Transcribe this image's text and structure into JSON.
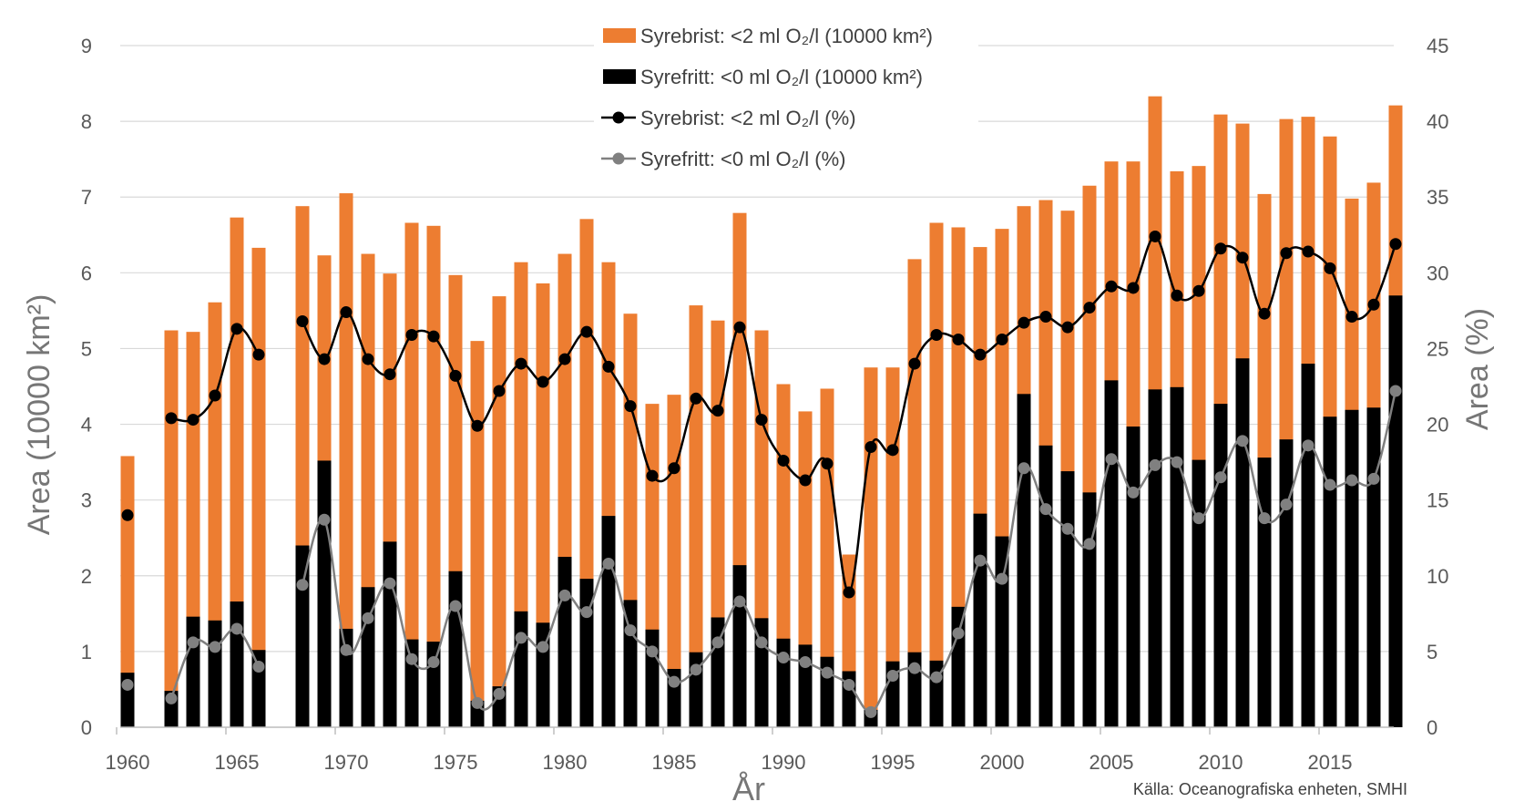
{
  "chart_data": {
    "type": "bar",
    "title": "",
    "xlabel": "År",
    "ylabel": "Area (10000 km²)",
    "ylabel_right": "Area (%)",
    "source": "Källa: Oceanografiska enheten, SMHI",
    "ylim": [
      0,
      9
    ],
    "ylim_right": [
      0,
      45
    ],
    "yticks": [
      "0",
      "1",
      "2",
      "3",
      "4",
      "5",
      "6",
      "7",
      "8",
      "9"
    ],
    "yticks_right": [
      "0",
      "5",
      "10",
      "15",
      "20",
      "25",
      "30",
      "35",
      "40",
      "45"
    ],
    "xticks": [
      "1960",
      "1965",
      "1970",
      "1975",
      "1980",
      "1985",
      "1990",
      "1995",
      "2000",
      "2005",
      "2010",
      "2015"
    ],
    "xlim": [
      1960,
      2018
    ],
    "years": [
      1960,
      1961,
      1962,
      1963,
      1964,
      1965,
      1966,
      1967,
      1968,
      1969,
      1970,
      1971,
      1972,
      1973,
      1974,
      1975,
      1976,
      1977,
      1978,
      1979,
      1980,
      1981,
      1982,
      1983,
      1984,
      1985,
      1986,
      1987,
      1988,
      1989,
      1990,
      1991,
      1992,
      1993,
      1994,
      1995,
      1996,
      1997,
      1998,
      1999,
      2000,
      2001,
      2002,
      2003,
      2004,
      2005,
      2006,
      2007,
      2008,
      2009,
      2010,
      2011,
      2012,
      2013,
      2014,
      2015,
      2016,
      2017,
      2018
    ],
    "legend": [
      {
        "label": "Syrebrist: <2 ml O₂/l (10000 km²)",
        "kind": "bar",
        "color": "#ed7d31"
      },
      {
        "label": "Syrefritt: <0 ml O₂/l (10000 km²)",
        "kind": "bar",
        "color": "#000000"
      },
      {
        "label": "Syrebrist: <2 ml O₂/l (%)",
        "kind": "line",
        "color": "#000000"
      },
      {
        "label": "Syrefritt: <0 ml O₂/l (%)",
        "kind": "line",
        "color": "#808080"
      }
    ],
    "series": [
      {
        "name": "Syrebrist: <2 ml O₂/l (10000 km²)",
        "axis": "left",
        "type": "bar",
        "color": "#ed7d31",
        "values": [
          3.58,
          null,
          5.24,
          5.22,
          5.61,
          6.73,
          6.33,
          null,
          6.88,
          6.23,
          7.05,
          6.25,
          5.99,
          6.66,
          6.62,
          5.97,
          5.1,
          5.69,
          6.14,
          5.86,
          6.25,
          6.71,
          6.14,
          5.46,
          4.27,
          4.39,
          5.57,
          5.37,
          6.79,
          5.24,
          4.53,
          4.17,
          4.47,
          2.28,
          4.75,
          4.75,
          6.18,
          6.66,
          6.6,
          6.34,
          6.58,
          6.88,
          6.96,
          6.82,
          7.15,
          7.47,
          7.47,
          8.33,
          7.34,
          7.41,
          8.09,
          7.97,
          7.04,
          8.03,
          8.06,
          7.8,
          6.98,
          7.19,
          8.21
        ]
      },
      {
        "name": "Syrefritt: <0 ml O₂/l (10000 km²)",
        "axis": "left",
        "type": "bar",
        "color": "#000000",
        "values": [
          0.72,
          null,
          0.48,
          1.46,
          1.41,
          1.66,
          1.02,
          null,
          2.4,
          3.52,
          1.3,
          1.85,
          2.45,
          1.16,
          1.13,
          2.06,
          0.35,
          0.54,
          1.53,
          1.38,
          2.25,
          1.96,
          2.79,
          1.68,
          1.29,
          0.77,
          0.99,
          1.45,
          2.14,
          1.44,
          1.17,
          1.09,
          0.93,
          0.74,
          0.23,
          0.87,
          0.99,
          0.88,
          1.59,
          2.82,
          2.52,
          4.4,
          3.72,
          3.38,
          3.1,
          4.58,
          3.97,
          4.46,
          4.49,
          3.53,
          4.27,
          4.87,
          3.56,
          3.8,
          4.8,
          4.1,
          4.19,
          4.22,
          5.7
        ]
      },
      {
        "name": "Syrebrist: <2 ml O₂/l (%)",
        "axis": "right",
        "type": "line",
        "color": "#000000",
        "values": [
          14.0,
          null,
          20.4,
          20.3,
          21.9,
          26.3,
          24.6,
          null,
          26.8,
          24.3,
          27.4,
          24.3,
          23.3,
          25.9,
          25.8,
          23.2,
          19.9,
          22.2,
          24.0,
          22.8,
          24.3,
          26.1,
          23.8,
          21.2,
          16.6,
          17.1,
          21.7,
          20.9,
          26.4,
          20.3,
          17.6,
          16.3,
          17.4,
          8.9,
          18.5,
          18.3,
          24.0,
          25.9,
          25.6,
          24.6,
          25.6,
          26.7,
          27.1,
          26.4,
          27.7,
          29.1,
          29.0,
          32.4,
          28.5,
          28.8,
          31.6,
          31.0,
          27.3,
          31.3,
          31.4,
          30.3,
          27.1,
          27.9,
          31.9
        ]
      },
      {
        "name": "Syrefritt: <0 ml O₂/l (%)",
        "axis": "right",
        "type": "line",
        "color": "#808080",
        "values": [
          2.8,
          null,
          1.9,
          5.6,
          5.3,
          6.5,
          4.0,
          null,
          9.4,
          13.7,
          5.1,
          7.2,
          9.5,
          4.5,
          4.3,
          8.0,
          1.6,
          2.2,
          5.9,
          5.3,
          8.7,
          7.6,
          10.8,
          6.4,
          5.0,
          3.0,
          3.8,
          5.6,
          8.3,
          5.6,
          4.6,
          4.3,
          3.6,
          2.8,
          1.0,
          3.4,
          3.9,
          3.3,
          6.2,
          11.0,
          9.8,
          17.1,
          14.4,
          13.1,
          12.1,
          17.7,
          15.5,
          17.3,
          17.5,
          13.8,
          16.5,
          18.9,
          13.8,
          14.7,
          18.6,
          16.0,
          16.3,
          16.4,
          22.2
        ]
      }
    ]
  }
}
